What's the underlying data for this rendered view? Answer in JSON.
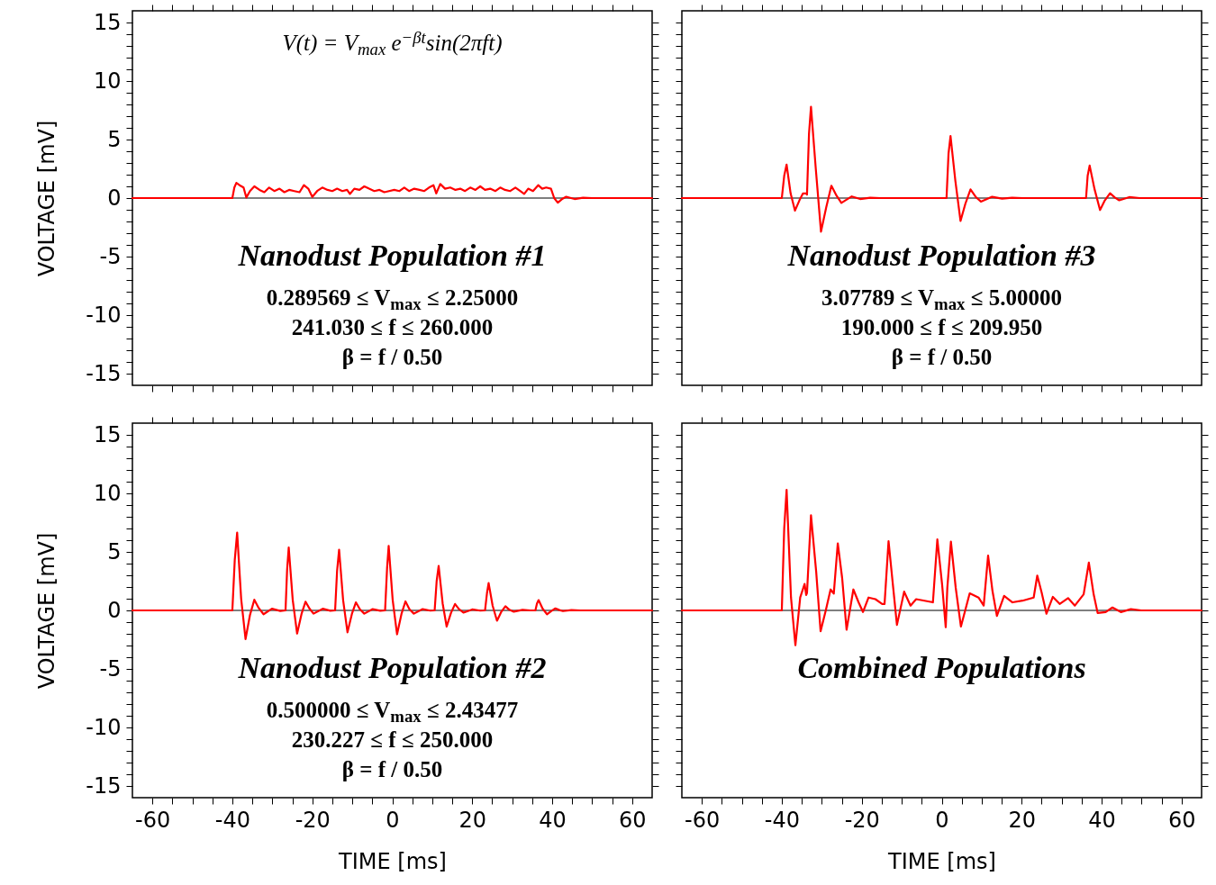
{
  "chart_data": [
    {
      "type": "line",
      "title": "Nanodust Population #1",
      "subtitle": "V(t) = V$_{max}$ e$^{−βt}$sin(2πft)",
      "annotations": [
        "0.289569 ≤ V$_{max}$ ≤ 2.25000",
        "241.030 ≤ f ≤ 260.000",
        "β = f / 0.50"
      ],
      "ylabel": "VOLTAGE [mV]",
      "xlim": [
        -65,
        65
      ],
      "ylim": [
        -16,
        16
      ],
      "xticks": [
        -60,
        {
          "value": -55,
          "label": null
        },
        {
          "value": -50,
          "label": null
        },
        {
          "value": -45,
          "label": null
        },
        -40,
        {
          "value": -35,
          "label": null
        },
        {
          "value": -30,
          "label": null
        },
        {
          "value": -25,
          "label": null
        },
        -20,
        {
          "value": -15,
          "label": null
        },
        {
          "value": -10,
          "label": null
        },
        {
          "value": -5,
          "label": null
        },
        0,
        {
          "value": 5,
          "label": null
        },
        {
          "value": 10,
          "label": null
        },
        {
          "value": 15,
          "label": null
        },
        20,
        {
          "value": 25,
          "label": null
        },
        {
          "value": 30,
          "label": null
        },
        {
          "value": 35,
          "label": null
        },
        40,
        {
          "value": 45,
          "label": null
        },
        {
          "value": 50,
          "label": null
        },
        {
          "value": 55,
          "label": null
        },
        60
      ],
      "yticks": [
        -15,
        {
          "value": -14,
          "label": null
        },
        {
          "value": -13,
          "label": null
        },
        {
          "value": -12,
          "label": null
        },
        {
          "value": -11,
          "label": null
        },
        -10,
        {
          "value": -9,
          "label": null
        },
        {
          "value": -8,
          "label": null
        },
        {
          "value": -7,
          "label": null
        },
        {
          "value": -6,
          "label": null
        },
        -5,
        {
          "value": -4,
          "label": null
        },
        {
          "value": -3,
          "label": null
        },
        {
          "value": -2,
          "label": null
        },
        {
          "value": -1,
          "label": null
        },
        0,
        {
          "value": 1,
          "label": null
        },
        {
          "value": 2,
          "label": null
        },
        {
          "value": 3,
          "label": null
        },
        {
          "value": 4,
          "label": null
        },
        5,
        {
          "value": 6,
          "label": null
        },
        {
          "value": 7,
          "label": null
        },
        {
          "value": 8,
          "label": null
        },
        {
          "value": 9,
          "label": null
        },
        10,
        {
          "value": 11,
          "label": null
        },
        {
          "value": 12,
          "label": null
        },
        {
          "value": 13,
          "label": null
        },
        {
          "value": 14,
          "label": null
        },
        15
      ],
      "tick_labels": "y",
      "ref_lines": [
        {
          "axis": "y",
          "value": 0,
          "color": "#000000"
        }
      ],
      "series": [
        {
          "color": "#ff0000",
          "x": [
            -65,
            -40,
            -39.5,
            -39,
            -38.2,
            -37.2,
            -36.5,
            -35.6,
            -34.5,
            -33.2,
            -32,
            -30.8,
            -29.5,
            -28.2,
            -27,
            -25.8,
            -24.5,
            -23.2,
            -22.1,
            -21,
            -20,
            -18.8,
            -17.5,
            -16.2,
            -15,
            -13.8,
            -12.5,
            -11.3,
            -10.6,
            -9.5,
            -8.2,
            -7,
            -5.8,
            -4.5,
            -3.2,
            -2,
            -0.8,
            0.5,
            1.8,
            3,
            4.2,
            5.5,
            6.8,
            8,
            9.2,
            10.3,
            11,
            12,
            13.2,
            14.5,
            15.8,
            17,
            18.2,
            19.5,
            20.8,
            22,
            23.2,
            24.5,
            25.8,
            27,
            28.2,
            29.5,
            30.8,
            32,
            33,
            34,
            35.2,
            36.5,
            37.5,
            38.5,
            39.7,
            40.5,
            41.4,
            42.4,
            43.5,
            44.5,
            45.6,
            47.7,
            50,
            65
          ],
          "values": [
            0,
            0,
            0.9,
            1.3,
            1.1,
            0.9,
            0.05,
            0.6,
            1.0,
            0.7,
            0.5,
            0.9,
            0.6,
            0.8,
            0.5,
            0.7,
            0.6,
            0.5,
            1.1,
            0.8,
            0.1,
            0.6,
            0.9,
            0.7,
            0.6,
            0.8,
            0.6,
            0.7,
            0.35,
            0.8,
            0.7,
            1.0,
            0.8,
            0.6,
            0.7,
            0.5,
            0.6,
            0.7,
            0.6,
            0.9,
            0.6,
            0.8,
            0.7,
            0.6,
            0.9,
            1.1,
            0.4,
            1.2,
            0.8,
            0.9,
            0.7,
            0.8,
            0.6,
            0.9,
            0.7,
            1.0,
            0.7,
            0.8,
            0.6,
            0.9,
            0.7,
            0.6,
            0.9,
            0.6,
            0.35,
            0.8,
            0.6,
            1.1,
            0.8,
            0.9,
            0.8,
            0,
            -0.39,
            -0.1,
            0.11,
            0.02,
            -0.08,
            0.03,
            0,
            0
          ]
        }
      ]
    },
    {
      "type": "line",
      "title": "Nanodust Population #3",
      "annotations": [
        "3.07789 ≤ V$_{max}$ ≤ 5.00000",
        "190.000 ≤ f ≤ 209.950",
        "β = f / 0.50"
      ],
      "xlim": [
        -65,
        65
      ],
      "ylim": [
        -16,
        16
      ],
      "xticks": [
        -60,
        {
          "value": -55,
          "label": null
        },
        {
          "value": -50,
          "label": null
        },
        {
          "value": -45,
          "label": null
        },
        -40,
        {
          "value": -35,
          "label": null
        },
        {
          "value": -30,
          "label": null
        },
        {
          "value": -25,
          "label": null
        },
        -20,
        {
          "value": -15,
          "label": null
        },
        {
          "value": -10,
          "label": null
        },
        {
          "value": -5,
          "label": null
        },
        0,
        {
          "value": 5,
          "label": null
        },
        {
          "value": 10,
          "label": null
        },
        {
          "value": 15,
          "label": null
        },
        20,
        {
          "value": 25,
          "label": null
        },
        {
          "value": 30,
          "label": null
        },
        {
          "value": 35,
          "label": null
        },
        40,
        {
          "value": 45,
          "label": null
        },
        {
          "value": 50,
          "label": null
        },
        {
          "value": 55,
          "label": null
        },
        60
      ],
      "yticks": [
        -15,
        {
          "value": -14,
          "label": null
        },
        {
          "value": -13,
          "label": null
        },
        {
          "value": -12,
          "label": null
        },
        {
          "value": -11,
          "label": null
        },
        -10,
        {
          "value": -9,
          "label": null
        },
        {
          "value": -8,
          "label": null
        },
        {
          "value": -7,
          "label": null
        },
        {
          "value": -6,
          "label": null
        },
        -5,
        {
          "value": -4,
          "label": null
        },
        {
          "value": -3,
          "label": null
        },
        {
          "value": -2,
          "label": null
        },
        {
          "value": -1,
          "label": null
        },
        0,
        {
          "value": 1,
          "label": null
        },
        {
          "value": 2,
          "label": null
        },
        {
          "value": 3,
          "label": null
        },
        {
          "value": 4,
          "label": null
        },
        5,
        {
          "value": 6,
          "label": null
        },
        {
          "value": 7,
          "label": null
        },
        {
          "value": 8,
          "label": null
        },
        {
          "value": 9,
          "label": null
        },
        10,
        {
          "value": 11,
          "label": null
        },
        {
          "value": 12,
          "label": null
        },
        {
          "value": 13,
          "label": null
        },
        {
          "value": 14,
          "label": null
        },
        15
      ],
      "tick_labels": false,
      "ref_lines": [
        {
          "axis": "y",
          "value": 0,
          "color": "#000000"
        }
      ],
      "series": [
        {
          "color": "#ff0000",
          "x": [
            -65,
            -40,
            -39.4,
            -38.8,
            -37.8,
            -36.7,
            -35.6,
            -34.7,
            -33.9,
            -33.7,
            -33.2,
            -32.7,
            -31.5,
            -30.2,
            -28.9,
            -27.6,
            -26.3,
            -25.1,
            -22.5,
            -20.4,
            -17.9,
            -15.4,
            1.2,
            1.7,
            2.2,
            3.4,
            4.7,
            5.9,
            7.2,
            8.5,
            9.8,
            12.6,
            15.1,
            17.6,
            20.2,
            36.1,
            36.5,
            37,
            38.2,
            39.6,
            40.8,
            42.1,
            43.3,
            44.4,
            46.9,
            49.5,
            65
          ],
          "values": [
            0,
            0,
            1.9,
            2.86,
            0.4,
            -1.07,
            -0.2,
            0.4,
            0.4,
            0.3,
            5.5,
            7.8,
            2.5,
            -2.87,
            -0.8,
            1.05,
            0.2,
            -0.41,
            0.14,
            -0.08,
            0.03,
            0,
            0,
            3.8,
            5.3,
            1.5,
            -1.96,
            -0.5,
            0.74,
            0.1,
            -0.3,
            0.11,
            -0.05,
            0.03,
            0,
            0,
            1.9,
            2.78,
            0.8,
            -1.02,
            -0.2,
            0.41,
            0.05,
            -0.19,
            0.08,
            0,
            0
          ]
        }
      ]
    },
    {
      "type": "line",
      "title": "Nanodust Population #2",
      "annotations": [
        "0.500000 ≤ V$_{max}$ ≤ 2.43477",
        "230.227 ≤ f ≤ 250.000",
        "β = f / 0.50"
      ],
      "xlabel": "TIME [ms]",
      "ylabel": "VOLTAGE [mV]",
      "xlim": [
        -65,
        65
      ],
      "ylim": [
        -16,
        16
      ],
      "xticks": [
        -60,
        {
          "value": -55,
          "label": null
        },
        {
          "value": -50,
          "label": null
        },
        {
          "value": -45,
          "label": null
        },
        -40,
        {
          "value": -35,
          "label": null
        },
        {
          "value": -30,
          "label": null
        },
        {
          "value": -25,
          "label": null
        },
        -20,
        {
          "value": -15,
          "label": null
        },
        {
          "value": -10,
          "label": null
        },
        {
          "value": -5,
          "label": null
        },
        0,
        {
          "value": 5,
          "label": null
        },
        {
          "value": 10,
          "label": null
        },
        {
          "value": 15,
          "label": null
        },
        20,
        {
          "value": 25,
          "label": null
        },
        {
          "value": 30,
          "label": null
        },
        {
          "value": 35,
          "label": null
        },
        40,
        {
          "value": 45,
          "label": null
        },
        {
          "value": 50,
          "label": null
        },
        {
          "value": 55,
          "label": null
        },
        60
      ],
      "yticks": [
        -15,
        {
          "value": -14,
          "label": null
        },
        {
          "value": -13,
          "label": null
        },
        {
          "value": -12,
          "label": null
        },
        {
          "value": -11,
          "label": null
        },
        -10,
        {
          "value": -9,
          "label": null
        },
        {
          "value": -8,
          "label": null
        },
        {
          "value": -7,
          "label": null
        },
        {
          "value": -6,
          "label": null
        },
        -5,
        {
          "value": -4,
          "label": null
        },
        {
          "value": -3,
          "label": null
        },
        {
          "value": -2,
          "label": null
        },
        {
          "value": -1,
          "label": null
        },
        0,
        {
          "value": 1,
          "label": null
        },
        {
          "value": 2,
          "label": null
        },
        {
          "value": 3,
          "label": null
        },
        {
          "value": 4,
          "label": null
        },
        5,
        {
          "value": 6,
          "label": null
        },
        {
          "value": 7,
          "label": null
        },
        {
          "value": 8,
          "label": null
        },
        {
          "value": 9,
          "label": null
        },
        10,
        {
          "value": 11,
          "label": null
        },
        {
          "value": 12,
          "label": null
        },
        {
          "value": 13,
          "label": null
        },
        {
          "value": 14,
          "label": null
        },
        15
      ],
      "ref_lines": [
        {
          "axis": "y",
          "value": 0,
          "color": "#000000"
        }
      ],
      "series": [
        {
          "color": "#ff0000",
          "x": [
            -65,
            -40,
            -39.4,
            -38.8,
            -37.8,
            -36.7,
            -35.6,
            -34.5,
            -33.4,
            -32.2,
            -30.1,
            -28,
            -26.7,
            -26.3,
            -25.9,
            -24.9,
            -23.8,
            -22.7,
            -21.7,
            -20.7,
            -19.7,
            -17.4,
            -15.5,
            -14.3,
            -13.8,
            -13.3,
            -12.3,
            -11.2,
            -10.1,
            -9.1,
            -8.1,
            -7,
            -4.9,
            -3,
            -1.8,
            -1.3,
            -0.9,
            0.1,
            1.2,
            2.3,
            3.3,
            4.3,
            5.4,
            7.6,
            9.5,
            10.6,
            11.1,
            11.6,
            12.6,
            13.6,
            14.7,
            15.7,
            16.7,
            17.8,
            20,
            22,
            23.2,
            23.7,
            24.1,
            25.1,
            26.2,
            27.3,
            28.3,
            29.3,
            30.4,
            32.6,
            34.5,
            35.8,
            36.2,
            36.6,
            37.6,
            38.7,
            39.8,
            40.8,
            41.8,
            42.7,
            44.8,
            47,
            65
          ],
          "values": [
            0,
            0,
            4.3,
            6.64,
            1.0,
            -2.45,
            -0.4,
            0.91,
            0.2,
            -0.33,
            0.14,
            -0.05,
            0,
            3.5,
            5.37,
            0.9,
            -1.98,
            -0.3,
            0.74,
            0.15,
            -0.28,
            0.14,
            -0.03,
            0,
            3.4,
            5.18,
            0.9,
            -1.87,
            -0.3,
            0.69,
            0.1,
            -0.28,
            0.11,
            -0.03,
            0,
            3.6,
            5.51,
            0.9,
            -2.04,
            -0.3,
            0.77,
            0.1,
            -0.28,
            0.11,
            -0.02,
            0,
            2.5,
            3.8,
            0.6,
            -1.38,
            -0.2,
            0.55,
            0.1,
            -0.19,
            0.08,
            -0.02,
            0,
            1.5,
            2.34,
            0.4,
            -0.88,
            -0.1,
            0.36,
            0.05,
            -0.11,
            0.05,
            0,
            0,
            0.6,
            0.88,
            0.15,
            -0.33,
            -0.05,
            0.17,
            0.03,
            -0.06,
            0.03,
            0,
            0
          ]
        }
      ]
    },
    {
      "type": "line",
      "title": "Combined Populations",
      "xlabel": "TIME [ms]",
      "xlim": [
        -65,
        65
      ],
      "ylim": [
        -16,
        16
      ],
      "xticks": [
        -60,
        {
          "value": -55,
          "label": null
        },
        {
          "value": -50,
          "label": null
        },
        {
          "value": -45,
          "label": null
        },
        -40,
        {
          "value": -35,
          "label": null
        },
        {
          "value": -30,
          "label": null
        },
        {
          "value": -25,
          "label": null
        },
        -20,
        {
          "value": -15,
          "label": null
        },
        {
          "value": -10,
          "label": null
        },
        {
          "value": -5,
          "label": null
        },
        0,
        {
          "value": 5,
          "label": null
        },
        {
          "value": 10,
          "label": null
        },
        {
          "value": 15,
          "label": null
        },
        20,
        {
          "value": 25,
          "label": null
        },
        {
          "value": 30,
          "label": null
        },
        {
          "value": 35,
          "label": null
        },
        40,
        {
          "value": 45,
          "label": null
        },
        {
          "value": 50,
          "label": null
        },
        {
          "value": 55,
          "label": null
        },
        60
      ],
      "yticks": [
        -15,
        {
          "value": -14,
          "label": null
        },
        {
          "value": -13,
          "label": null
        },
        {
          "value": -12,
          "label": null
        },
        {
          "value": -11,
          "label": null
        },
        -10,
        {
          "value": -9,
          "label": null
        },
        {
          "value": -8,
          "label": null
        },
        {
          "value": -7,
          "label": null
        },
        {
          "value": -6,
          "label": null
        },
        -5,
        {
          "value": -4,
          "label": null
        },
        {
          "value": -3,
          "label": null
        },
        {
          "value": -2,
          "label": null
        },
        {
          "value": -1,
          "label": null
        },
        0,
        {
          "value": 1,
          "label": null
        },
        {
          "value": 2,
          "label": null
        },
        {
          "value": 3,
          "label": null
        },
        {
          "value": 4,
          "label": null
        },
        5,
        {
          "value": 6,
          "label": null
        },
        {
          "value": 7,
          "label": null
        },
        {
          "value": 8,
          "label": null
        },
        {
          "value": 9,
          "label": null
        },
        10,
        {
          "value": 11,
          "label": null
        },
        {
          "value": 12,
          "label": null
        },
        {
          "value": 13,
          "label": null
        },
        {
          "value": 14,
          "label": null
        },
        15
      ],
      "tick_labels": "x",
      "ref_lines": [
        {
          "axis": "y",
          "value": 0,
          "color": "#000000"
        }
      ],
      "series": [
        {
          "color": "#ff0000",
          "x": [
            -65,
            -40,
            -39.4,
            -38.8,
            -37.7,
            -36.6,
            -35.4,
            -34.3,
            -33.9,
            -33.7,
            -32.7,
            -31.4,
            -30.3,
            -29,
            -27.8,
            -27,
            -26,
            -24.9,
            -23.8,
            -22.1,
            -20.8,
            -19.7,
            -18.3,
            -16.6,
            -14.9,
            -14.3,
            -13.3,
            -12.3,
            -11.2,
            -9.4,
            -7.8,
            -6.4,
            -4.3,
            -2.2,
            -1.1,
            0.1,
            1,
            1.4,
            2.3,
            3.5,
            4.8,
            7,
            9.2,
            10.5,
            11.6,
            12.7,
            13.8,
            15.6,
            17.7,
            20.2,
            23,
            23.9,
            25,
            26.2,
            27.8,
            29.5,
            31.6,
            33.3,
            35.5,
            36.8,
            38,
            39,
            41,
            42.7,
            44.8,
            47.3,
            49.9,
            65
          ],
          "values": [
            0,
            0,
            7.0,
            10.3,
            1.1,
            -2.98,
            1.1,
            2.26,
            1.32,
            1.5,
            8.13,
            3.3,
            -1.79,
            0,
            1.79,
            1.43,
            5.73,
            2.75,
            -1.65,
            1.79,
            0.69,
            -0.14,
            1.1,
            0.96,
            0.55,
            0.55,
            5.92,
            2.48,
            -1.24,
            1.6,
            0.41,
            0.96,
            0.83,
            0.69,
            6.06,
            2.2,
            -1.43,
            1.93,
            5.87,
            1.93,
            -1.38,
            1.46,
            1.1,
            0.41,
            4.68,
            1.65,
            -0.47,
            1.24,
            0.69,
            0.83,
            1.1,
            2.98,
            1.52,
            -0.28,
            1.16,
            0.55,
            1.05,
            0.41,
            1.38,
            4.08,
            1.38,
            -0.22,
            -0.14,
            0.25,
            -0.14,
            0.11,
            0,
            0
          ]
        }
      ]
    }
  ]
}
